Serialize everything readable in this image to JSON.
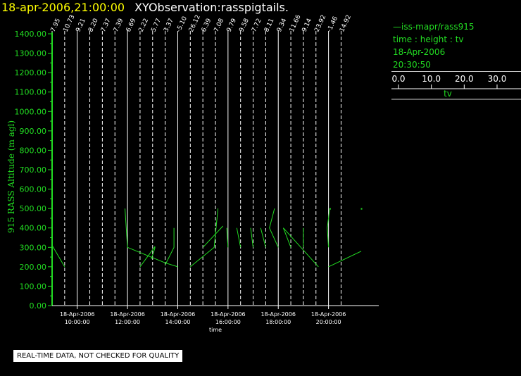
{
  "header": {
    "datetime": "18-apr-2006,21:00:00",
    "title": "XYObservation:rasspigtails."
  },
  "legend": {
    "series_label": "iss-mapr/rass915",
    "axes_desc": "time : height : tv",
    "date": "18-Apr-2006",
    "time": "20:30:50",
    "scale_ticks": [
      "0.0",
      "10.0",
      "20.0",
      "30.0"
    ],
    "scale_label": "tv"
  },
  "footer": {
    "notice": "REAL-TIME DATA, NOT CHECKED FOR QUALITY"
  },
  "colors": {
    "background": "#000000",
    "axis": "#22dd22",
    "profile": "#22dd22",
    "grid": "#ffffff",
    "title_date": "#ffff00"
  },
  "chart_data": {
    "type": "line",
    "ylabel": "915 RASS Altitude (m agl)",
    "xlabel": "time",
    "ylim": [
      0,
      1400
    ],
    "xlim_hours": [
      9.0,
      22.0
    ],
    "y_ticks": [
      "0.00",
      "100.00",
      "200.00",
      "300.00",
      "400.00",
      "500.00",
      "600.00",
      "700.00",
      "800.00",
      "900.00",
      "1000.00",
      "1100.00",
      "1200.00",
      "1300.00",
      "1400.00"
    ],
    "x_ticks": [
      {
        "h": 10,
        "date": "18-Apr-2006",
        "time": "10:00:00"
      },
      {
        "h": 12,
        "date": "18-Apr-2006",
        "time": "12:00:00"
      },
      {
        "h": 14,
        "date": "18-Apr-2006",
        "time": "14:00:00"
      },
      {
        "h": 16,
        "date": "18-Apr-2006",
        "time": "16:00:00"
      },
      {
        "h": 18,
        "date": "18-Apr-2006",
        "time": "18:00:00"
      },
      {
        "h": 20,
        "date": "18-Apr-2006",
        "time": "20:00:00"
      }
    ],
    "profiles": [
      {
        "h": 9.0,
        "label": "7.95",
        "pts": [
          [
            9.0,
            310
          ],
          [
            9.5,
            200
          ]
        ]
      },
      {
        "h": 9.5,
        "label": "10.73",
        "pts": []
      },
      {
        "h": 10.0,
        "label": "9.21",
        "pts": []
      },
      {
        "h": 10.5,
        "label": "8.20",
        "pts": []
      },
      {
        "h": 11.0,
        "label": "7.37",
        "pts": []
      },
      {
        "h": 11.5,
        "label": "7.39",
        "pts": []
      },
      {
        "h": 12.0,
        "label": "6.69",
        "pts": [
          [
            11.9,
            500
          ],
          [
            12.0,
            300
          ],
          [
            13.5,
            220
          ],
          [
            14.0,
            200
          ]
        ]
      },
      {
        "h": 12.5,
        "label": "2.22",
        "pts": [
          [
            12.5,
            200
          ],
          [
            13.1,
            305
          ]
        ]
      },
      {
        "h": 13.0,
        "label": "5.77",
        "pts": [
          [
            12.95,
            240
          ],
          [
            13.1,
            300
          ]
        ]
      },
      {
        "h": 13.5,
        "label": "3.37",
        "pts": [
          [
            13.5,
            210
          ],
          [
            13.85,
            300
          ],
          [
            13.85,
            400
          ]
        ]
      },
      {
        "h": 14.0,
        "label": "-5.10",
        "pts": []
      },
      {
        "h": 14.5,
        "label": "26.12",
        "pts": [
          [
            14.5,
            200
          ],
          [
            15.45,
            300
          ],
          [
            15.6,
            500
          ]
        ]
      },
      {
        "h": 15.0,
        "label": "6.39",
        "pts": [
          [
            15.0,
            300
          ],
          [
            15.8,
            410
          ]
        ]
      },
      {
        "h": 15.5,
        "label": "7.08",
        "pts": []
      },
      {
        "h": 16.0,
        "label": "9.79",
        "pts": [
          [
            16.0,
            300
          ],
          [
            15.95,
            400
          ]
        ]
      },
      {
        "h": 16.5,
        "label": "9.58",
        "pts": [
          [
            16.5,
            300
          ],
          [
            16.35,
            400
          ]
        ]
      },
      {
        "h": 17.0,
        "label": "7.72",
        "pts": [
          [
            17.0,
            300
          ],
          [
            16.9,
            400
          ]
        ]
      },
      {
        "h": 17.5,
        "label": "8.11",
        "pts": [
          [
            17.5,
            300
          ],
          [
            17.3,
            400
          ]
        ]
      },
      {
        "h": 18.0,
        "label": "9.34",
        "pts": [
          [
            18.0,
            300
          ],
          [
            17.65,
            400
          ],
          [
            17.85,
            500
          ]
        ]
      },
      {
        "h": 18.5,
        "label": "11.66",
        "pts": [
          [
            18.5,
            300
          ],
          [
            18.2,
            400
          ],
          [
            19.6,
            200
          ]
        ]
      },
      {
        "h": 19.0,
        "label": "9.14",
        "pts": [
          [
            19.0,
            300
          ],
          [
            19.0,
            400
          ]
        ]
      },
      {
        "h": 19.5,
        "label": "23.92",
        "pts": []
      },
      {
        "h": 20.0,
        "label": "-1.46",
        "pts": [
          [
            20.0,
            300
          ],
          [
            19.95,
            400
          ],
          [
            20.05,
            500
          ]
        ]
      },
      {
        "h": 20.5,
        "label": "14.92",
        "pts": [
          [
            20.0,
            200
          ],
          [
            21.3,
            280
          ]
        ]
      }
    ],
    "isolated_marks": [
      {
        "x": 20.05,
        "y": 500
      },
      {
        "x": 21.3,
        "y": 500
      }
    ]
  }
}
